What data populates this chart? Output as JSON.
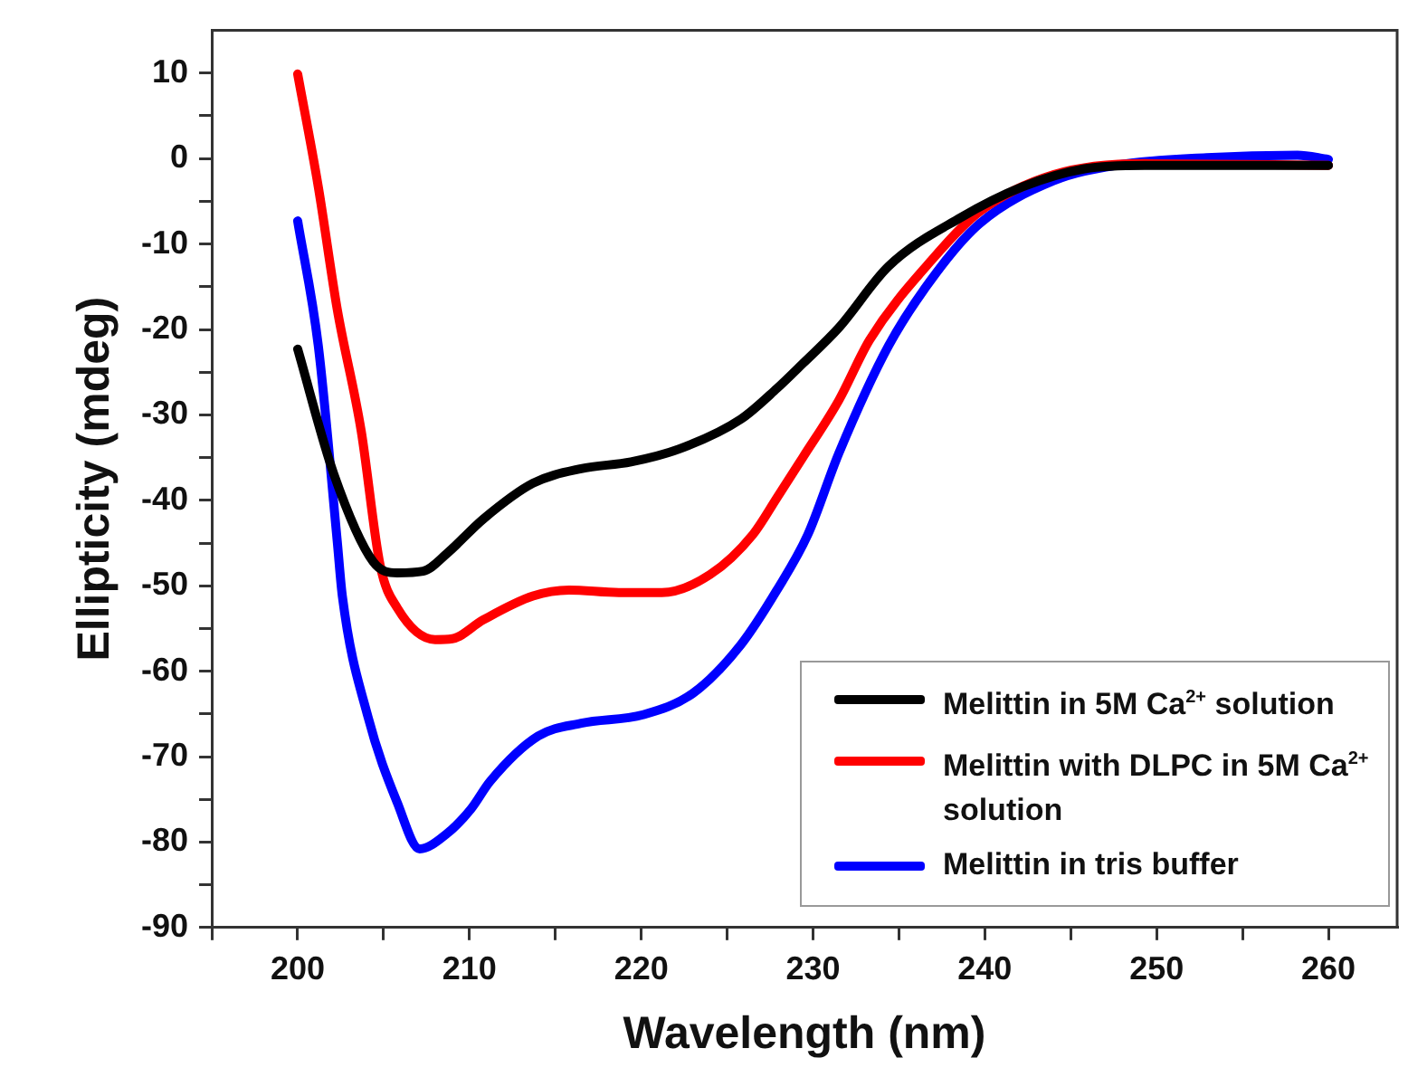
{
  "chart_data": {
    "type": "line",
    "xlabel": "Wavelength (nm)",
    "ylabel": "Ellipticity (mdeg)",
    "xlim": [
      195,
      264
    ],
    "xticks": [
      {
        "value": 195,
        "label": null
      },
      200,
      {
        "value": 205,
        "label": null
      },
      210,
      {
        "value": 215,
        "label": null
      },
      220,
      {
        "value": 225,
        "label": null
      },
      230,
      {
        "value": 235,
        "label": null
      },
      240,
      {
        "value": 245,
        "label": null
      },
      250,
      {
        "value": 255,
        "label": null
      },
      260
    ],
    "ylim": [
      -90,
      15
    ],
    "yticks": [
      -90,
      {
        "value": -85,
        "label": null
      },
      -80,
      {
        "value": -75,
        "label": null
      },
      -70,
      {
        "value": -65,
        "label": null
      },
      -60,
      {
        "value": -55,
        "label": null
      },
      -50,
      {
        "value": -45,
        "label": null
      },
      -40,
      {
        "value": -35,
        "label": null
      },
      -30,
      {
        "value": -25,
        "label": null
      },
      -20,
      {
        "value": -15,
        "label": null
      },
      -10,
      {
        "value": -5,
        "label": null
      },
      0,
      {
        "value": 5,
        "label": null
      },
      10
    ],
    "grid": false,
    "legend": "bottom right",
    "marker": "none",
    "line_style": "solid",
    "series": [
      {
        "name": "Melittin in 5M Ca$^{2+}$ solution",
        "color": "#000000",
        "x": [
          200,
          202.1,
          204.4,
          205.8,
          207.3,
          208.7,
          210.8,
          213.7,
          216.5,
          219.4,
          222.2,
          225.8,
          227.9,
          229.4,
          231.5,
          234.4,
          238.6,
          242.2,
          245.8,
          249.3,
          260
        ],
        "values": [
          -22.3,
          -36.9,
          -47.2,
          -48.5,
          -48.3,
          -46.2,
          -42.2,
          -38,
          -36.3,
          -35.5,
          -34,
          -30.5,
          -26.9,
          -24,
          -19.8,
          -12.6,
          -6.9,
          -3.3,
          -1.2,
          -0.8,
          -0.8
        ]
      },
      {
        "name": "Melittin with DLPC in 5M Ca$^{2+}$ solution",
        "color": "#ff0000",
        "x": [
          200,
          201.2,
          202.3,
          203.7,
          204.8,
          205.8,
          208,
          209,
          210.8,
          213.7,
          215.8,
          218.7,
          221.2,
          224,
          226.5,
          227.9,
          229.4,
          231.5,
          233.3,
          236.9,
          239.7,
          244,
          249.3,
          260
        ],
        "values": [
          9.9,
          -3.3,
          -17.6,
          -31.9,
          -47.6,
          -52.6,
          -56.3,
          -56.2,
          -54,
          -51.2,
          -50.5,
          -50.8,
          -50.8,
          -48.7,
          -44,
          -39.7,
          -35,
          -28.3,
          -21.2,
          -11.9,
          -6.2,
          -1.9,
          -0.6,
          -0.8
        ]
      },
      {
        "name": "Melittin in tris buffer",
        "color": "#0000ff",
        "x": [
          200,
          201.2,
          202.3,
          202.6,
          204.1,
          205.8,
          207.1,
          208.7,
          210.1,
          211.2,
          214,
          216.5,
          220.1,
          223,
          225.8,
          227.9,
          229.7,
          231.5,
          234.4,
          237.2,
          239.7,
          244,
          247.6,
          252.9,
          258.2,
          260
        ],
        "values": [
          -7.3,
          -21.9,
          -44.7,
          -51.2,
          -65.4,
          -75.4,
          -80.8,
          -79,
          -76.1,
          -72.9,
          -67.6,
          -66.1,
          -65.1,
          -62.6,
          -56.9,
          -50.5,
          -44,
          -34.5,
          -21.9,
          -13.3,
          -7.6,
          -2.6,
          -0.8,
          0.1,
          0.4,
          -0.1
        ]
      }
    ]
  }
}
